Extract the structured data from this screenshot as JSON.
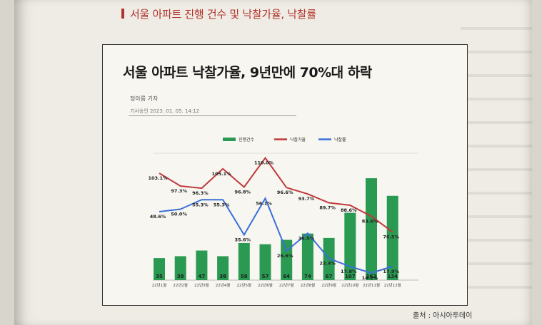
{
  "section_title": "서울 아파트 진행 건수 및 낙찰가율, 낙찰률",
  "article": {
    "headline": "서울 아파트 낙찰가율, 9년만에 70%대 하락",
    "reporter": "정아름 기자",
    "approved": "기사승인 2023. 01. 05. 14:12"
  },
  "source": "출처 : 아시아투데이",
  "colors": {
    "bar": "#2a9a52",
    "rate_line": "#c0393b",
    "success_line": "#3b6fd8"
  },
  "chart_data": {
    "type": "bar",
    "categories": [
      "22년1월",
      "22년2월",
      "22년3월",
      "22년4월",
      "22년5월",
      "22년6월",
      "22년7월",
      "22년8월",
      "22년9월",
      "22년10월",
      "22년11월",
      "22년12월"
    ],
    "series": [
      {
        "name": "진행건수",
        "type": "bar",
        "values": [
          35,
          38,
          47,
          38,
          59,
          57,
          64,
          74,
          67,
          107,
          162,
          134
        ],
        "labels": [
          "35",
          "38",
          "47",
          "38",
          "59",
          "57",
          "64",
          "74",
          "67",
          "107",
          "162",
          "134"
        ]
      },
      {
        "name": "낙찰가율",
        "type": "line",
        "values": [
          103.1,
          97.3,
          96.3,
          105.1,
          96.8,
          110.0,
          96.6,
          93.7,
          89.7,
          88.6,
          83.6,
          76.5
        ],
        "labels": [
          "103.1%",
          "97.3%",
          "96.3%",
          "105.1%",
          "96.8%",
          "110.0%",
          "96.6%",
          "93.7%",
          "89.7%",
          "88.6%",
          "83.6%",
          "76.5%"
        ]
      },
      {
        "name": "낙찰률",
        "type": "line",
        "values": [
          48.6,
          50.0,
          55.3,
          55.3,
          35.6,
          56.1,
          26.6,
          36.5,
          22.4,
          17.8,
          14.2,
          17.9
        ],
        "labels": [
          "48.6%",
          "50.0%",
          "55.3%",
          "55.3%",
          "35.6%",
          "56.1%",
          "26.6%",
          "36.5%",
          "22.4%",
          "17.8%",
          "14.2%",
          "17.9%"
        ]
      }
    ],
    "legend_position": "top"
  }
}
